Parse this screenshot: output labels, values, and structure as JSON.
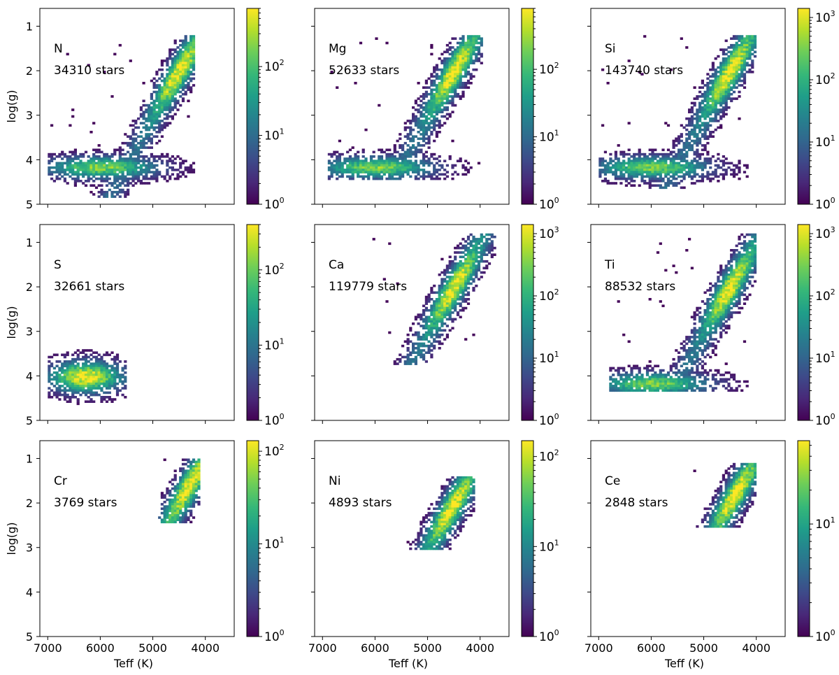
{
  "chart_data": {
    "type": "heatmap",
    "description_axis": "Teff on x (reversed), log(g) on y (reversed), log-scaled 2D histogram colorbar per panel",
    "x_axis": {
      "label": "Teff (K)",
      "range": [
        7150,
        3450
      ],
      "ticks": [
        7000,
        6000,
        5000,
        4000
      ],
      "tick_labels": [
        "7000",
        "6000",
        "5000",
        "4000"
      ]
    },
    "y_axis": {
      "label": "log(g)",
      "range": [
        0.6,
        5.0
      ],
      "ticks": [
        1,
        2,
        3,
        4,
        5
      ],
      "tick_labels": [
        "1",
        "2",
        "3",
        "4",
        "5"
      ]
    },
    "colormap": [
      "#440154",
      "#482878",
      "#3e4989",
      "#31688e",
      "#26828e",
      "#1f9e89",
      "#35b779",
      "#6ece58",
      "#b5de2b",
      "#fde725"
    ],
    "panels": [
      {
        "element": "N",
        "count_label": "34310 stars",
        "cbar_max": 700,
        "cbar_ticks": [
          {
            "base": "10",
            "exp": "0"
          },
          {
            "base": "10",
            "exp": "1"
          },
          {
            "base": "10",
            "exp": "2"
          }
        ],
        "teff_range": [
          7000,
          4200
        ],
        "logg_range": [
          1.2,
          4.8
        ],
        "peak": [
          4550,
          2.0
        ],
        "dwarf_clump": true
      },
      {
        "element": "Mg",
        "count_label": "52633 stars",
        "cbar_max": 800,
        "cbar_ticks": [
          {
            "base": "10",
            "exp": "0"
          },
          {
            "base": "10",
            "exp": "1"
          },
          {
            "base": "10",
            "exp": "2"
          }
        ],
        "teff_range": [
          6900,
          3950
        ],
        "logg_range": [
          1.2,
          4.4
        ],
        "peak": [
          4600,
          2.0
        ],
        "dwarf_clump": true
      },
      {
        "element": "Si",
        "count_label": "143740 stars",
        "cbar_max": 1400,
        "cbar_ticks": [
          {
            "base": "10",
            "exp": "0"
          },
          {
            "base": "10",
            "exp": "1"
          },
          {
            "base": "10",
            "exp": "2"
          },
          {
            "base": "10",
            "exp": "3"
          }
        ],
        "teff_range": [
          7000,
          4000
        ],
        "logg_range": [
          1.2,
          4.6
        ],
        "peak": [
          4600,
          2.0
        ],
        "dwarf_clump": true
      },
      {
        "element": "S",
        "count_label": "32661 stars",
        "cbar_max": 400,
        "cbar_ticks": [
          {
            "base": "10",
            "exp": "0"
          },
          {
            "base": "10",
            "exp": "1"
          },
          {
            "base": "10",
            "exp": "2"
          }
        ],
        "teff_range": [
          7000,
          5500
        ],
        "logg_range": [
          3.4,
          4.8
        ],
        "peak": [
          6300,
          4.0
        ],
        "dwarf_clump": false
      },
      {
        "element": "Ca",
        "count_label": "119779 stars",
        "cbar_max": 1400,
        "cbar_ticks": [
          {
            "base": "10",
            "exp": "0"
          },
          {
            "base": "10",
            "exp": "1"
          },
          {
            "base": "10",
            "exp": "2"
          },
          {
            "base": "10",
            "exp": "3"
          }
        ],
        "teff_range": [
          6100,
          3700
        ],
        "logg_range": [
          0.8,
          3.7
        ],
        "peak": [
          4600,
          2.0
        ],
        "dwarf_clump": false
      },
      {
        "element": "Ti",
        "count_label": "88532 stars",
        "cbar_max": 1400,
        "cbar_ticks": [
          {
            "base": "10",
            "exp": "0"
          },
          {
            "base": "10",
            "exp": "1"
          },
          {
            "base": "10",
            "exp": "2"
          },
          {
            "base": "10",
            "exp": "3"
          }
        ],
        "teff_range": [
          6800,
          4000
        ],
        "logg_range": [
          0.8,
          4.3
        ],
        "peak": [
          4600,
          2.0
        ],
        "dwarf_clump": true
      },
      {
        "element": "Cr",
        "count_label": "3769 stars",
        "cbar_max": 130,
        "cbar_ticks": [
          {
            "base": "10",
            "exp": "0"
          },
          {
            "base": "10",
            "exp": "1"
          },
          {
            "base": "10",
            "exp": "2"
          }
        ],
        "teff_range": [
          4900,
          4100
        ],
        "logg_range": [
          1.0,
          2.4
        ],
        "peak": [
          4400,
          1.6
        ],
        "dwarf_clump": false
      },
      {
        "element": "Ni",
        "count_label": "4893 stars",
        "cbar_max": 150,
        "cbar_ticks": [
          {
            "base": "10",
            "exp": "0"
          },
          {
            "base": "10",
            "exp": "1"
          },
          {
            "base": "10",
            "exp": "2"
          }
        ],
        "teff_range": [
          5400,
          4100
        ],
        "logg_range": [
          1.4,
          3.0
        ],
        "peak": [
          4650,
          2.1
        ],
        "dwarf_clump": false
      },
      {
        "element": "Ce",
        "count_label": "2848 stars",
        "cbar_max": 55,
        "cbar_ticks": [
          {
            "base": "10",
            "exp": "0"
          },
          {
            "base": "10",
            "exp": "1"
          }
        ],
        "teff_range": [
          5200,
          4000
        ],
        "logg_range": [
          1.1,
          2.5
        ],
        "peak": [
          4550,
          1.8
        ],
        "dwarf_clump": false
      }
    ]
  }
}
